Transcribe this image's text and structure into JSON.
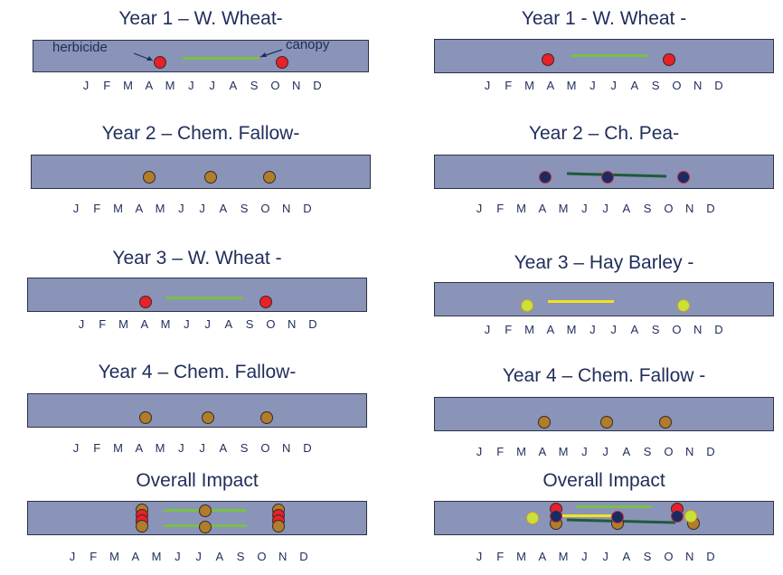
{
  "colors": {
    "bar": "#8a93b8",
    "herbicide_red": "#e8202a",
    "fallow_brown": "#b07d2c",
    "canopy_green": "#7ac043",
    "dark_green": "#1f5a3a",
    "navy_dot": "#1b2a63",
    "yellow": "#f2e31c",
    "lime_dot": "#c8e23a",
    "text": "#1f2d5a"
  },
  "months": [
    "J",
    "F",
    "M",
    "A",
    "M",
    "J",
    "J",
    "A",
    "S",
    "O",
    "N",
    "D"
  ],
  "annotations": {
    "herbicide": "herbicide",
    "canopy": "canopy"
  },
  "panels": {
    "l1": {
      "title": "Year 1 – W. Wheat-"
    },
    "l2": {
      "title": "Year 2 – Chem. Fallow-"
    },
    "l3": {
      "title": "Year 3 – W. Wheat -"
    },
    "l4": {
      "title": "Year 4 – Chem. Fallow-"
    },
    "l5": {
      "title": "Overall Impact"
    },
    "r1": {
      "title": "Year 1 - W. Wheat -"
    },
    "r2": {
      "title": "Year 2 – Ch. Pea-"
    },
    "r3": {
      "title": "Year 3 – Hay Barley -"
    },
    "r4": {
      "title": "Year 4 – Chem. Fallow -"
    },
    "r5": {
      "title": "Overall Impact"
    }
  }
}
